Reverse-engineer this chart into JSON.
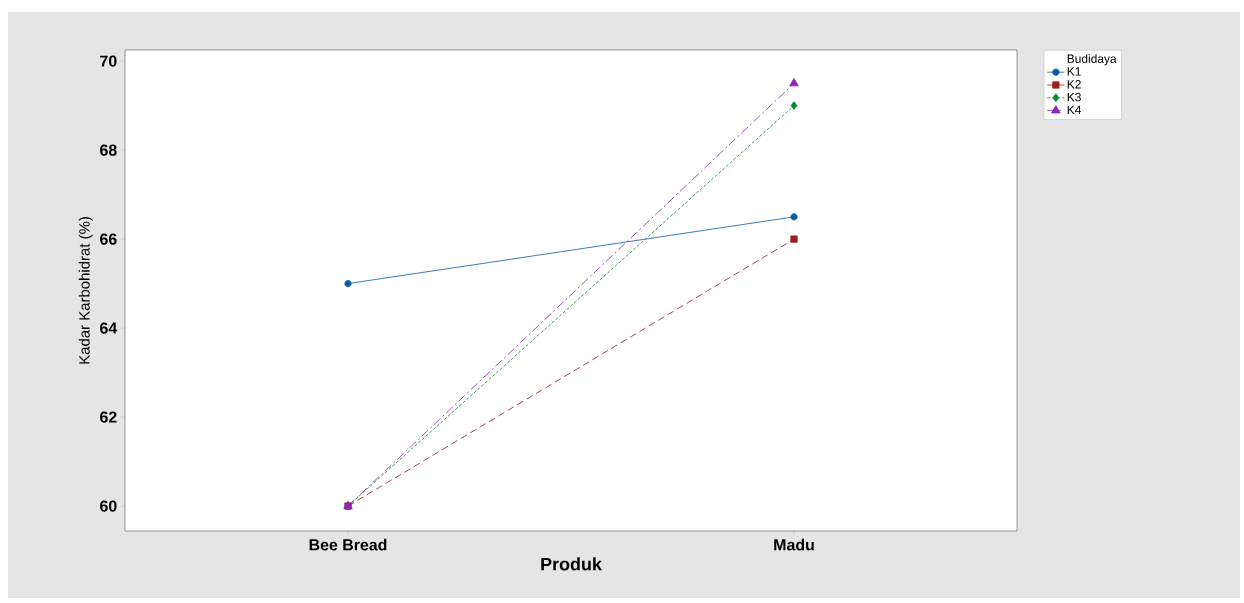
{
  "chart_data": {
    "type": "line",
    "xlabel": "Produk",
    "ylabel": "Kadar Karbohidrat (%)",
    "legend_title": "Budidaya",
    "legend": "top right",
    "categories": [
      "Bee Bread",
      "Madu"
    ],
    "ylim": [
      59.44,
      70.25
    ],
    "yticks": [
      60,
      62,
      64,
      66,
      68,
      70
    ],
    "grid": false,
    "series": [
      {
        "name": "K1",
        "color": "#0a5aa8",
        "values": [
          65,
          66.5
        ],
        "marker": "circle",
        "line_style": "solid"
      },
      {
        "name": "K2",
        "color": "#a01c1c",
        "values": [
          60,
          66
        ],
        "marker": "square",
        "line_style": "dashed"
      },
      {
        "name": "K3",
        "color": "#0a8a2a",
        "values": [
          60,
          69
        ],
        "marker": "diamond",
        "line_style": "dotted"
      },
      {
        "name": "K4",
        "color": "#8e24c0",
        "values": [
          60,
          69.5
        ],
        "marker": "triangle",
        "line_style": "dashdot"
      }
    ]
  }
}
